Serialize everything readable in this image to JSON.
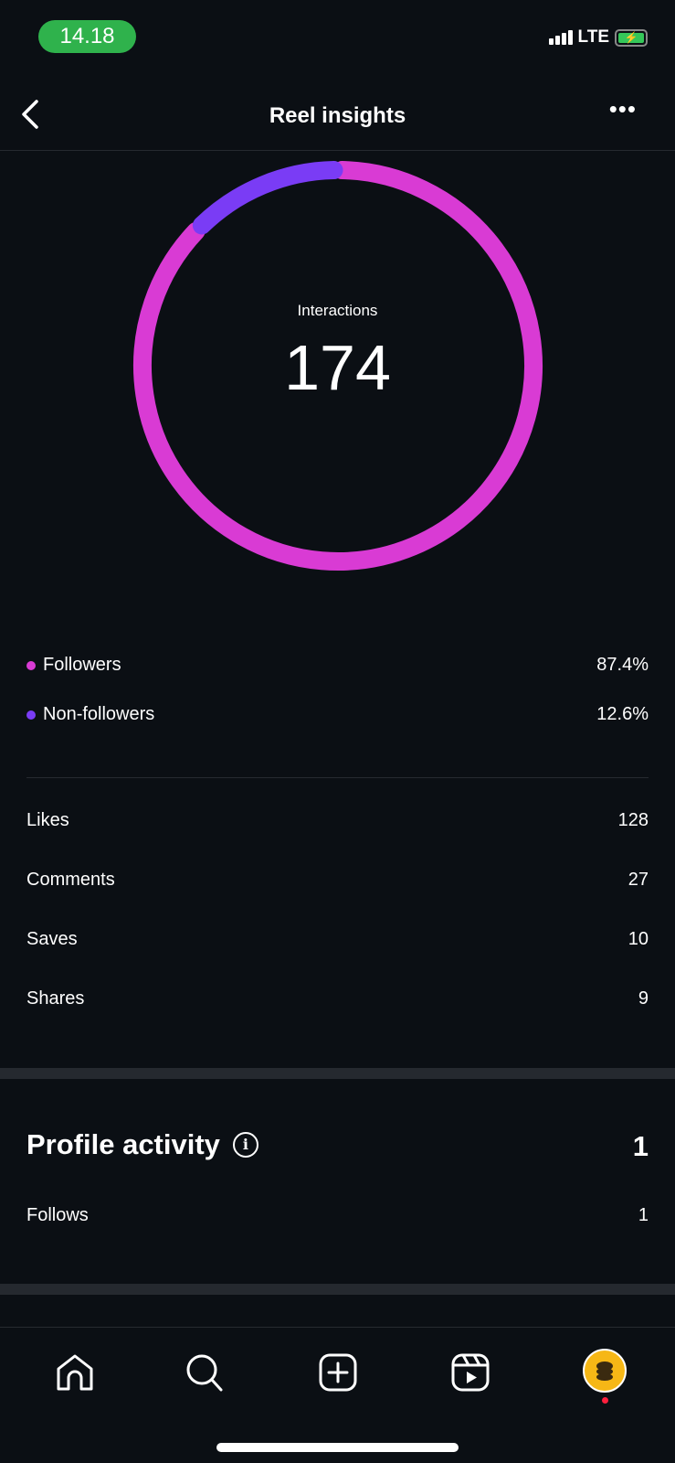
{
  "status_bar": {
    "time": "14.18",
    "network": "LTE"
  },
  "header": {
    "title": "Reel insights",
    "back_icon": "chevron-left-icon",
    "more_icon": "more-horizontal-icon"
  },
  "interactions": {
    "label": "Interactions",
    "total": "174",
    "breakdown": [
      {
        "label": "Followers",
        "value": "87.4%",
        "percent": 87.4,
        "color": "#d93bd4"
      },
      {
        "label": "Non-followers",
        "value": "12.6%",
        "percent": 12.6,
        "color": "#7a3cf5"
      }
    ]
  },
  "metrics": [
    {
      "label": "Likes",
      "value": "128"
    },
    {
      "label": "Comments",
      "value": "27"
    },
    {
      "label": "Saves",
      "value": "10"
    },
    {
      "label": "Shares",
      "value": "9"
    }
  ],
  "profile_activity": {
    "title": "Profile activity",
    "total": "1",
    "info_icon": "info-icon",
    "rows": [
      {
        "label": "Follows",
        "value": "1"
      }
    ]
  },
  "bottom_nav": [
    "home-icon",
    "search-icon",
    "create-icon",
    "reels-icon",
    "profile-avatar"
  ]
}
